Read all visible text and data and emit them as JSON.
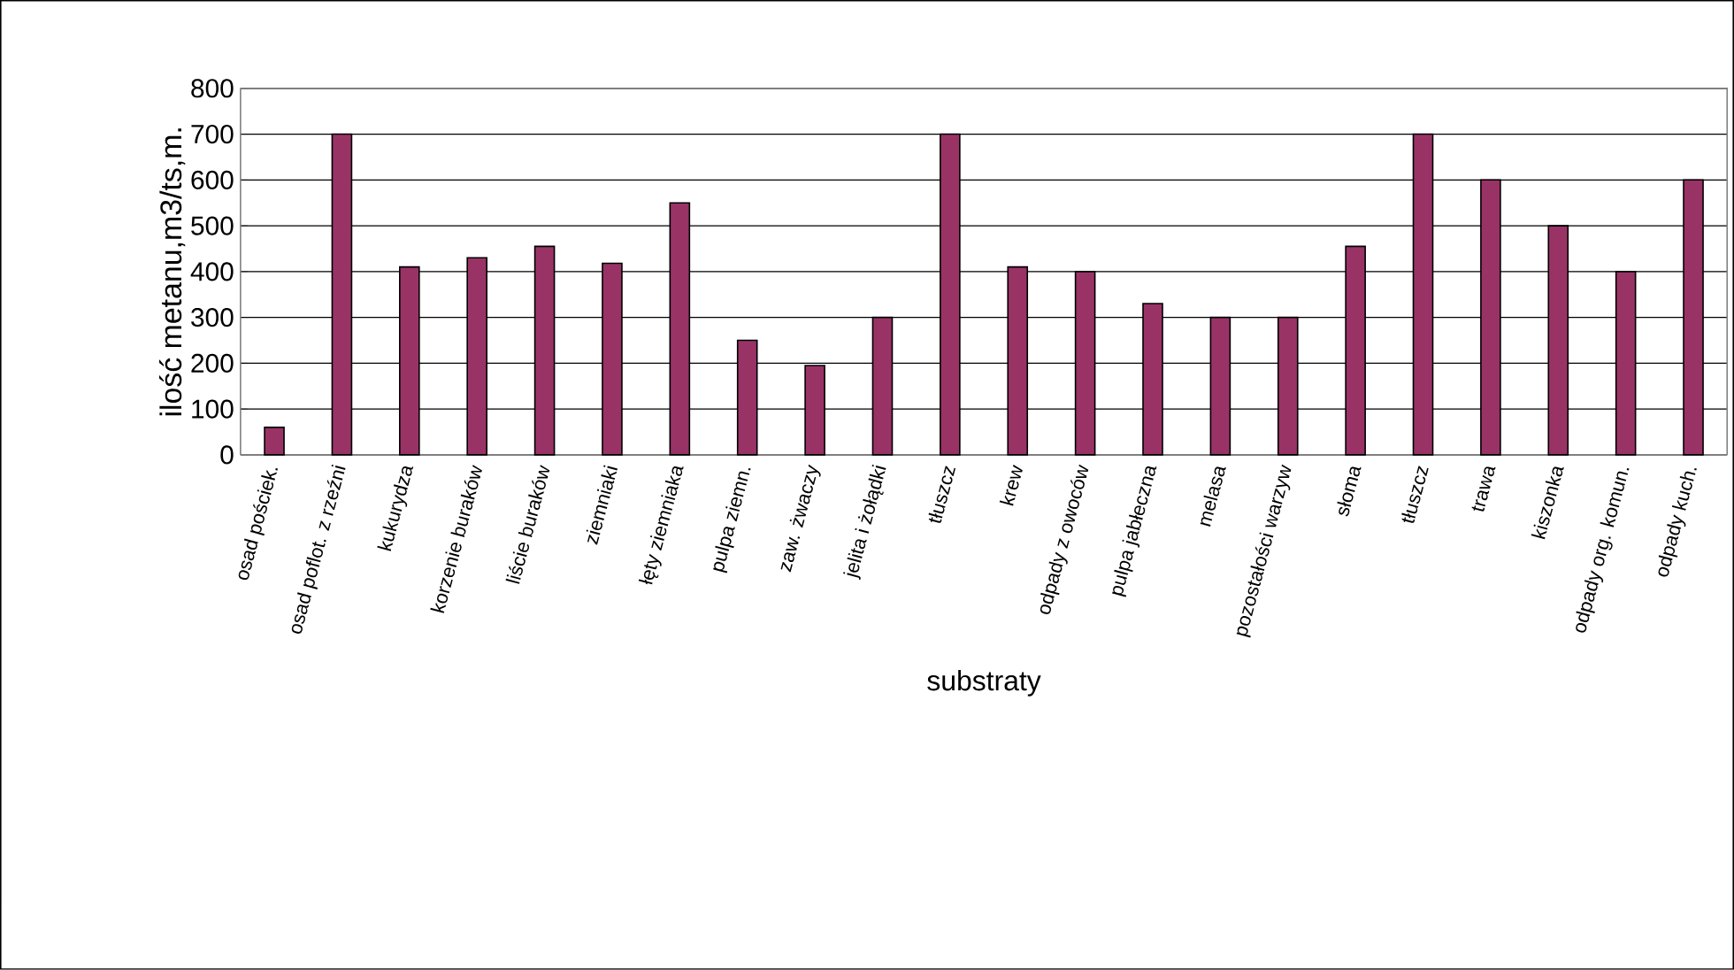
{
  "chart_data": {
    "type": "bar",
    "xlabel": "substraty",
    "ylabel": "ilość metanu,m3/ts,m.",
    "categories": [
      "osad pościek.",
      "osad poflot. z rzeźni",
      "kukurydza",
      "korzenie buraków",
      "liście buraków",
      "ziemniaki",
      "łęty ziemniaka",
      "pulpa ziemn.",
      "zaw. żwaczy",
      "jelita i żołądki",
      "tłuszcz",
      "krew",
      "odpady z owoców",
      "pulpa jabłeczna",
      "melasa",
      "pozostałości warzyw",
      "słoma",
      "tłuszcz",
      "trawa",
      "kiszonka",
      "odpady org. komun.",
      "odpady kuch."
    ],
    "values": [
      60,
      700,
      410,
      430,
      455,
      418,
      550,
      250,
      195,
      300,
      700,
      410,
      400,
      330,
      300,
      300,
      455,
      700,
      600,
      500,
      400,
      600
    ],
    "color": "#993366",
    "ylim": [
      0,
      800
    ],
    "yticks": [
      0,
      100,
      200,
      300,
      400,
      500,
      600,
      700,
      800
    ],
    "grid": "y"
  }
}
